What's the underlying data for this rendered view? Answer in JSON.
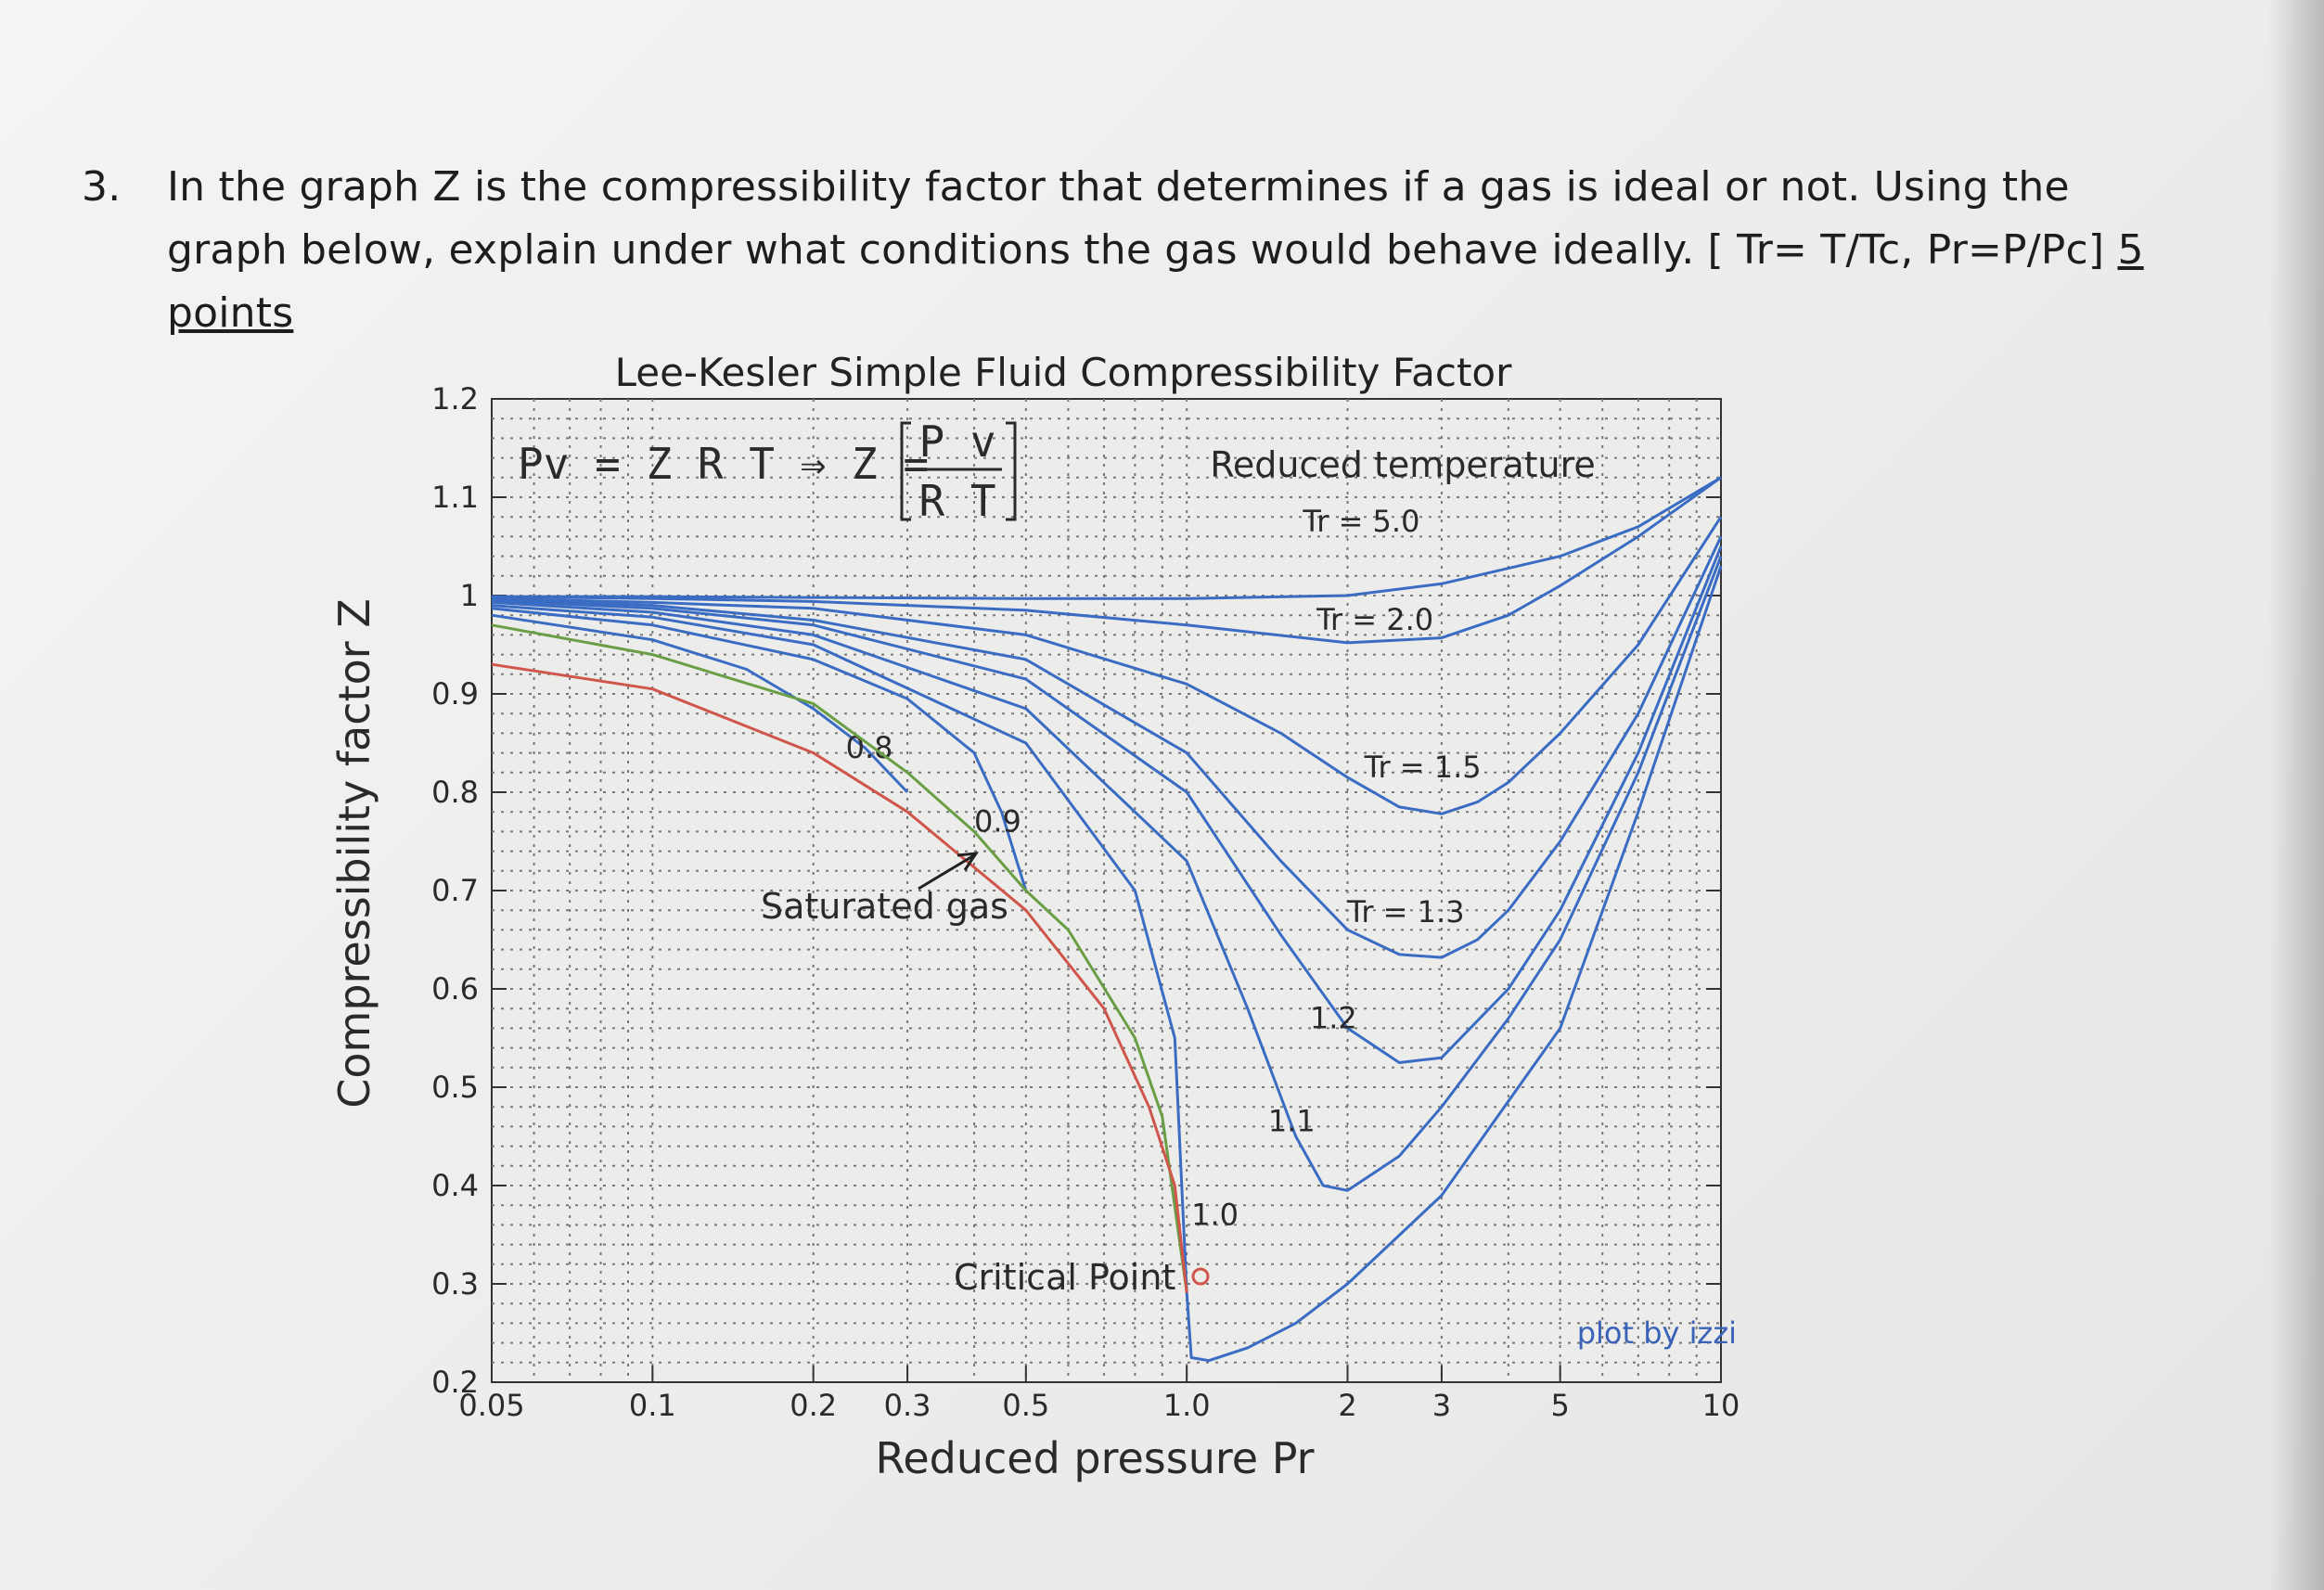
{
  "question": {
    "number": "3.",
    "text": "In the graph Z is the compressibility factor that determines if a gas is ideal or not. Using the graph below, explain under what conditions the gas would behave ideally. [ Tr= T/Tc, Pr=P/Pc]",
    "points": "5 points"
  },
  "chart_data": {
    "type": "line",
    "title": "Lee-Kesler Simple Fluid Compressibility Factor",
    "xlabel": "Reduced pressure Pr",
    "ylabel": "Compressibility factor Z",
    "xscale": "log",
    "xlim": [
      0.05,
      10
    ],
    "ylim": [
      0.2,
      1.2
    ],
    "x_ticks": [
      "0.05",
      "0.1",
      "0.2",
      "0.3",
      "0.5",
      "1.0",
      "2",
      "3",
      "5",
      "10"
    ],
    "y_ticks": [
      "0.2",
      "0.3",
      "0.4",
      "0.5",
      "0.6",
      "0.7",
      "0.8",
      "0.9",
      "1",
      "1.1",
      "1.2"
    ],
    "grid": true,
    "formula": {
      "lhs": "Pv = Z R T ⇒ Z =",
      "num": "P v",
      "den": "R T"
    },
    "legend_header": "Reduced temperature",
    "annotations": {
      "saturated": "Saturated gas",
      "critical": "Critical Point",
      "credit": "plot by izzi"
    },
    "colors": {
      "isotherm": "#3b6cc4",
      "saturated": "#6a9e45",
      "liquid": "#d0554b",
      "grid": "#777777"
    },
    "series": [
      {
        "name": "Tr = 5.0",
        "points": [
          [
            0.05,
            0.999
          ],
          [
            0.1,
            0.999
          ],
          [
            0.2,
            0.998
          ],
          [
            0.5,
            0.997
          ],
          [
            1,
            0.997
          ],
          [
            2,
            1.0
          ],
          [
            3,
            1.012
          ],
          [
            5,
            1.04
          ],
          [
            7,
            1.07
          ],
          [
            10,
            1.12
          ]
        ]
      },
      {
        "name": "Tr = 2.0",
        "points": [
          [
            0.05,
            0.999
          ],
          [
            0.1,
            0.997
          ],
          [
            0.2,
            0.994
          ],
          [
            0.5,
            0.985
          ],
          [
            1,
            0.97
          ],
          [
            2,
            0.952
          ],
          [
            3,
            0.957
          ],
          [
            4,
            0.98
          ],
          [
            5,
            1.01
          ],
          [
            7,
            1.06
          ],
          [
            10,
            1.12
          ]
        ]
      },
      {
        "name": "Tr = 1.5",
        "points": [
          [
            0.05,
            0.997
          ],
          [
            0.1,
            0.993
          ],
          [
            0.2,
            0.987
          ],
          [
            0.5,
            0.96
          ],
          [
            1,
            0.91
          ],
          [
            1.5,
            0.86
          ],
          [
            2,
            0.815
          ],
          [
            2.5,
            0.785
          ],
          [
            3,
            0.778
          ],
          [
            3.5,
            0.79
          ],
          [
            4,
            0.81
          ],
          [
            5,
            0.86
          ],
          [
            7,
            0.95
          ],
          [
            10,
            1.08
          ]
        ]
      },
      {
        "name": "Tr = 1.3",
        "points": [
          [
            0.05,
            0.996
          ],
          [
            0.1,
            0.99
          ],
          [
            0.2,
            0.975
          ],
          [
            0.5,
            0.935
          ],
          [
            1,
            0.84
          ],
          [
            1.5,
            0.73
          ],
          [
            2,
            0.66
          ],
          [
            2.5,
            0.635
          ],
          [
            3,
            0.632
          ],
          [
            3.5,
            0.65
          ],
          [
            4,
            0.68
          ],
          [
            5,
            0.75
          ],
          [
            7,
            0.88
          ],
          [
            10,
            1.06
          ]
        ]
      },
      {
        "name": "1.2",
        "points": [
          [
            0.05,
            0.995
          ],
          [
            0.1,
            0.987
          ],
          [
            0.2,
            0.97
          ],
          [
            0.5,
            0.915
          ],
          [
            1,
            0.8
          ],
          [
            1.5,
            0.655
          ],
          [
            2,
            0.56
          ],
          [
            2.5,
            0.525
          ],
          [
            3,
            0.53
          ],
          [
            4,
            0.6
          ],
          [
            5,
            0.68
          ],
          [
            7,
            0.84
          ],
          [
            10,
            1.05
          ]
        ]
      },
      {
        "name": "1.1",
        "points": [
          [
            0.05,
            0.993
          ],
          [
            0.1,
            0.983
          ],
          [
            0.2,
            0.96
          ],
          [
            0.5,
            0.885
          ],
          [
            1,
            0.73
          ],
          [
            1.3,
            0.58
          ],
          [
            1.6,
            0.45
          ],
          [
            1.8,
            0.4
          ],
          [
            2,
            0.395
          ],
          [
            2.5,
            0.43
          ],
          [
            3,
            0.48
          ],
          [
            4,
            0.57
          ],
          [
            5,
            0.65
          ],
          [
            7,
            0.82
          ],
          [
            10,
            1.04
          ]
        ]
      },
      {
        "name": "1.0",
        "points": [
          [
            0.05,
            0.99
          ],
          [
            0.1,
            0.978
          ],
          [
            0.2,
            0.95
          ],
          [
            0.5,
            0.85
          ],
          [
            0.8,
            0.7
          ],
          [
            0.95,
            0.55
          ],
          [
            1,
            0.291
          ],
          [
            1.02,
            0.225
          ],
          [
            1.1,
            0.222
          ],
          [
            1.3,
            0.235
          ],
          [
            1.6,
            0.26
          ],
          [
            2,
            0.3
          ],
          [
            3,
            0.39
          ],
          [
            5,
            0.56
          ],
          [
            7,
            0.78
          ],
          [
            10,
            1.03
          ]
        ]
      },
      {
        "name": "0.9",
        "points": [
          [
            0.05,
            0.987
          ],
          [
            0.1,
            0.97
          ],
          [
            0.2,
            0.935
          ],
          [
            0.3,
            0.895
          ],
          [
            0.4,
            0.84
          ],
          [
            0.45,
            0.78
          ],
          [
            0.5,
            0.7
          ]
        ]
      },
      {
        "name": "0.8",
        "points": [
          [
            0.05,
            0.98
          ],
          [
            0.1,
            0.955
          ],
          [
            0.15,
            0.925
          ],
          [
            0.2,
            0.885
          ],
          [
            0.25,
            0.845
          ],
          [
            0.3,
            0.8
          ]
        ]
      },
      {
        "name": "Saturated gas",
        "points": [
          [
            0.05,
            0.97
          ],
          [
            0.1,
            0.94
          ],
          [
            0.2,
            0.89
          ],
          [
            0.3,
            0.82
          ],
          [
            0.4,
            0.76
          ],
          [
            0.5,
            0.7
          ],
          [
            0.6,
            0.66
          ],
          [
            0.8,
            0.55
          ],
          [
            0.9,
            0.47
          ],
          [
            1,
            0.291
          ]
        ]
      },
      {
        "name": "",
        "points": [
          [
            0.05,
            0.93
          ],
          [
            0.1,
            0.905
          ],
          [
            0.2,
            0.84
          ],
          [
            0.3,
            0.78
          ],
          [
            0.5,
            0.68
          ],
          [
            0.7,
            0.58
          ],
          [
            0.85,
            0.48
          ],
          [
            0.95,
            0.4
          ],
          [
            1,
            0.291
          ]
        ]
      }
    ]
  }
}
